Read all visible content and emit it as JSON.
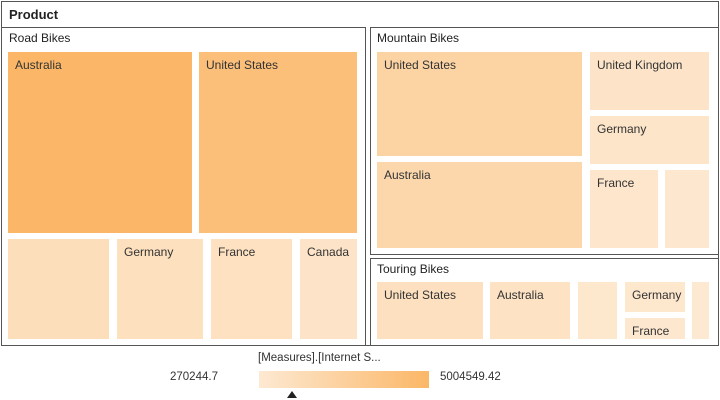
{
  "chart_data": {
    "type": "treemap",
    "title": "Product",
    "legend": {
      "title": "[Measures].[Internet S...",
      "min_label": "270244.7",
      "max_label": "5004549.42",
      "min": 270244.7,
      "max": 5004549.42,
      "color_low": "#fde9d2",
      "color_high": "#fbb767",
      "placement": "bottom-center"
    },
    "groups": [
      {
        "name": "Road Bikes",
        "items": [
          {
            "label": "Australia",
            "value": 5004549.42
          },
          {
            "label": "United States",
            "value": 4200000
          },
          {
            "label": "",
            "value": 1300000
          },
          {
            "label": "Germany",
            "value": 1150000
          },
          {
            "label": "France",
            "value": 1050000
          },
          {
            "label": "Canada",
            "value": 720000
          }
        ]
      },
      {
        "name": "Mountain Bikes",
        "items": [
          {
            "label": "United States",
            "value": 2300000
          },
          {
            "label": "Australia",
            "value": 2000000
          },
          {
            "label": "United Kingdom",
            "value": 720000
          },
          {
            "label": "Germany",
            "value": 650000
          },
          {
            "label": "France",
            "value": 600000
          },
          {
            "label": "",
            "value": 420000
          }
        ]
      },
      {
        "name": "Touring Bikes",
        "items": [
          {
            "label": "United States",
            "value": 1100000
          },
          {
            "label": "Australia",
            "value": 900000
          },
          {
            "label": "",
            "value": 500000
          },
          {
            "label": "Germany",
            "value": 470000
          },
          {
            "label": "France",
            "value": 420000
          },
          {
            "label": "",
            "value": 270244.7
          }
        ]
      }
    ]
  }
}
